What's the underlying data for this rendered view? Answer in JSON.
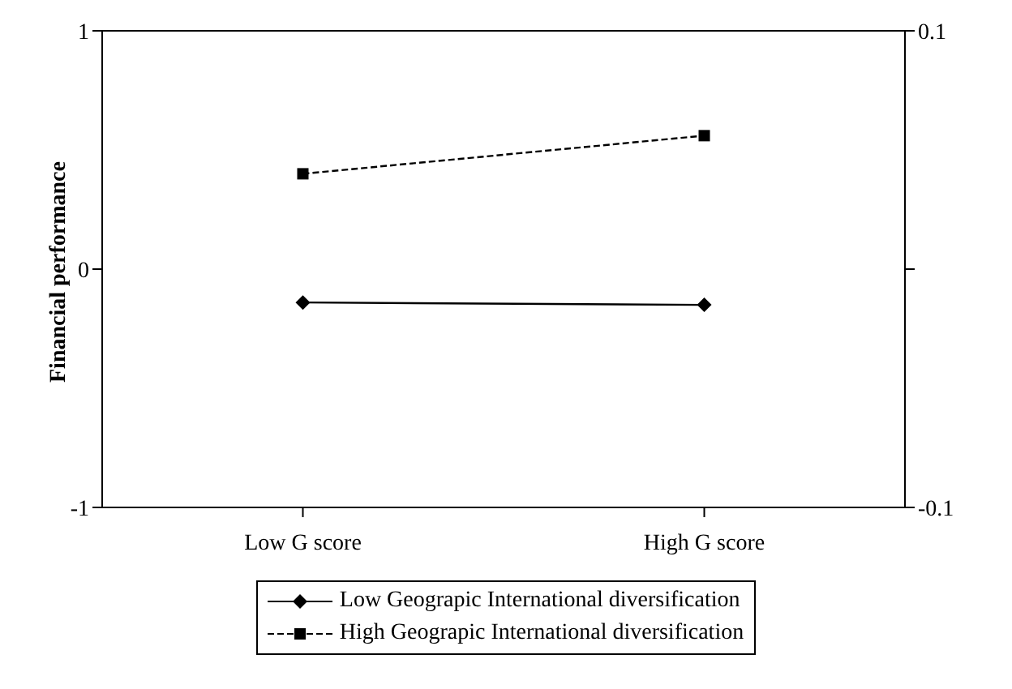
{
  "chart_data": {
    "type": "line",
    "ylabel": "Financial performance",
    "categories": [
      "Low G score",
      "High G score"
    ],
    "series": [
      {
        "name": "Low Geograpic International diversification",
        "color": "#000000",
        "values": [
          -0.14,
          -0.15
        ],
        "marker": "diamond",
        "line_style": "solid"
      },
      {
        "name": "High Geograpic International diversification",
        "color": "#000000",
        "values": [
          0.4,
          0.56
        ],
        "marker": "square",
        "line_style": "dashed"
      }
    ],
    "ylim": [
      -1,
      1
    ],
    "yticks": [
      -1,
      0,
      1
    ],
    "y2lim": [
      -0.1,
      0.1
    ],
    "y2ticks": [
      {
        "value": -0.1,
        "label": "-0.1"
      },
      {
        "value": 0,
        "label": null
      },
      {
        "value": 0.1,
        "label": "0.1"
      }
    ],
    "legend": "bottom"
  }
}
